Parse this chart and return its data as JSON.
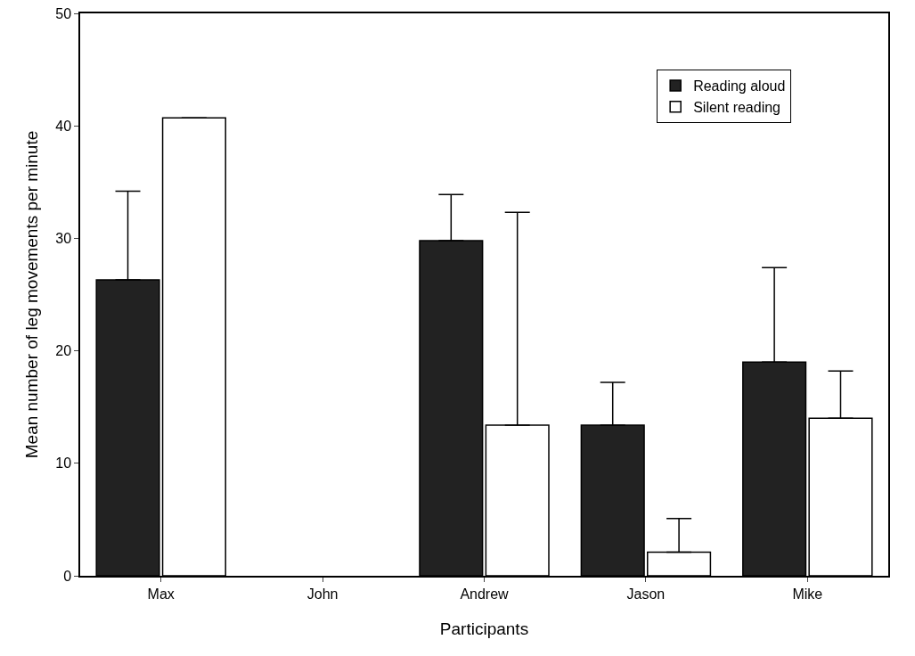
{
  "chart_data": {
    "type": "bar",
    "xlabel": "Participants",
    "ylabel": "Mean number of leg movements per minute",
    "categories": [
      "Max",
      "John",
      "Andrew",
      "Jason",
      "Mike"
    ],
    "series": [
      {
        "name": "Reading aloud",
        "color": "#222222",
        "values": [
          26.3,
          null,
          29.8,
          13.4,
          19.0
        ],
        "errors": [
          [
            26.3,
            34.2
          ],
          null,
          [
            29.8,
            33.9
          ],
          [
            13.4,
            17.2
          ],
          [
            19.0,
            27.4
          ]
        ]
      },
      {
        "name": "Silent reading",
        "color": "#ffffff",
        "values": [
          40.7,
          null,
          13.4,
          2.1,
          14.0
        ],
        "errors": [
          null,
          null,
          [
            13.4,
            32.3
          ],
          [
            2.1,
            5.1
          ],
          [
            14.0,
            18.2
          ]
        ]
      }
    ],
    "ylim": [
      0,
      50
    ],
    "yticks": [
      0,
      10,
      20,
      30,
      40,
      50
    ],
    "grid": false,
    "legend": "top right"
  }
}
